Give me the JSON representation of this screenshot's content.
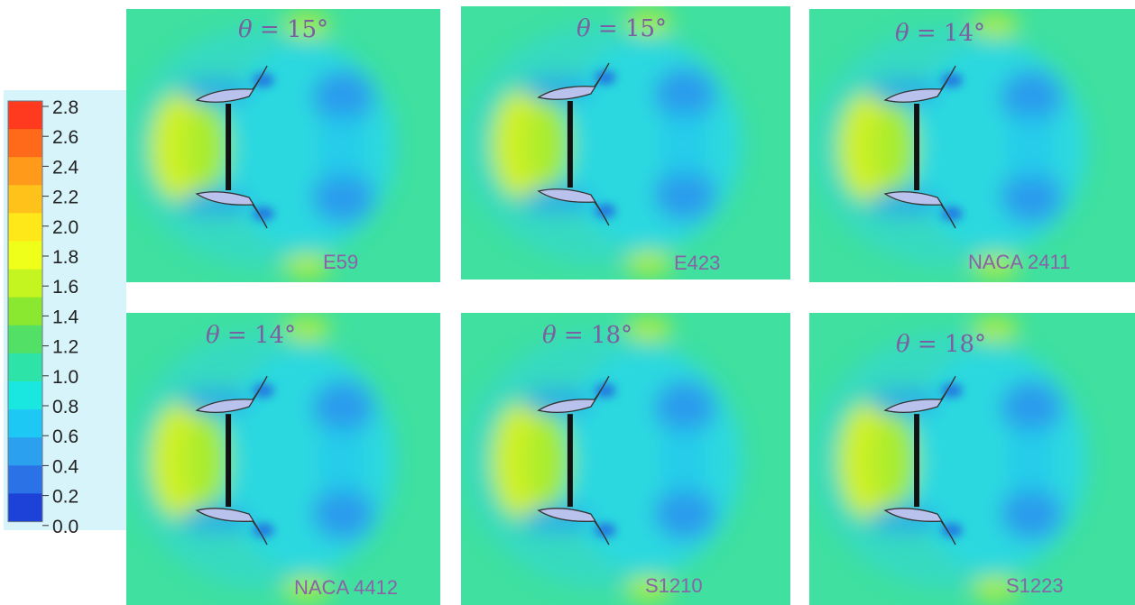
{
  "colorbar": {
    "ticks": [
      "2.8",
      "2.6",
      "2.4",
      "2.2",
      "2.0",
      "1.8",
      "1.6",
      "1.4",
      "1.2",
      "1.0",
      "0.8",
      "0.6",
      "0.4",
      "0.2",
      "0.0"
    ],
    "colors": [
      "#ff3a1e",
      "#ff6a1a",
      "#ff9a1a",
      "#ffc21a",
      "#ffe81a",
      "#f0ff1a",
      "#c4f520",
      "#8ae830",
      "#52e066",
      "#2ee3a8",
      "#1ae8e0",
      "#1ec8f5",
      "#2aa0ef",
      "#2a72e6",
      "#1c42d8"
    ]
  },
  "panels": [
    {
      "theta_symbol": "θ",
      "theta_value": "= 15°",
      "name": "E59"
    },
    {
      "theta_symbol": "θ",
      "theta_value": "= 15°",
      "name": "E423"
    },
    {
      "theta_symbol": "θ",
      "theta_value": "= 14°",
      "name": "NACA 2411"
    },
    {
      "theta_symbol": "θ",
      "theta_value": "= 14°",
      "name": "NACA 4412"
    },
    {
      "theta_symbol": "θ",
      "theta_value": "= 18°",
      "name": "S1210"
    },
    {
      "theta_symbol": "θ",
      "theta_value": "= 18°",
      "name": "S1223"
    }
  ]
}
